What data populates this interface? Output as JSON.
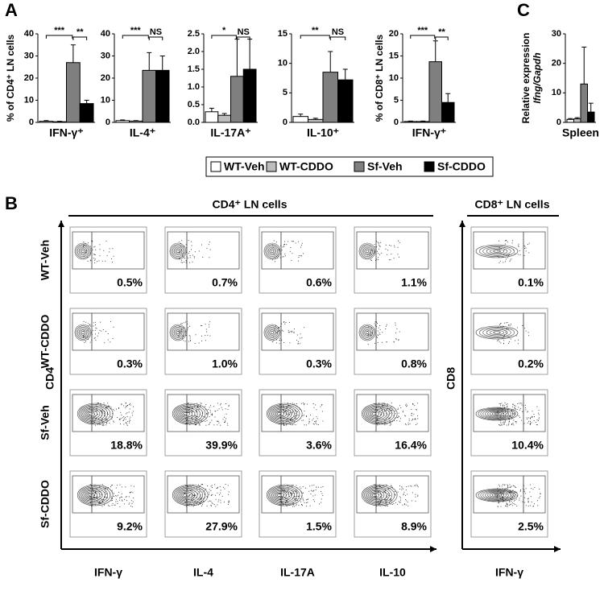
{
  "panel_letters": [
    "A",
    "B",
    "C"
  ],
  "legend": [
    {
      "name": "WT-Veh",
      "color": "#ffffff"
    },
    {
      "name": "WT-CDDO",
      "color": "#bdbdbd"
    },
    {
      "name": "Sf-Veh",
      "color": "#7f7f7f"
    },
    {
      "name": "Sf-CDDO",
      "color": "#000000"
    }
  ],
  "chart_data": [
    {
      "type": "bar",
      "ylabel": "% of CD4⁺ LN cells",
      "category": "IFN-γ⁺",
      "values": [
        0.5,
        0.3,
        27,
        8.5
      ],
      "errors": [
        0.3,
        0.2,
        8,
        1.5
      ],
      "ylim": [
        0,
        40
      ],
      "yticks": [
        0,
        10,
        20,
        30,
        40
      ],
      "annotations": [
        "***",
        "**"
      ]
    },
    {
      "type": "bar",
      "category": "IL-4⁺",
      "values": [
        0.8,
        0.6,
        23.5,
        23.5
      ],
      "errors": [
        0.3,
        0.2,
        8,
        6.5
      ],
      "ylim": [
        0,
        40
      ],
      "yticks": [
        0,
        10,
        20,
        30,
        40
      ],
      "annotations": [
        "***",
        "NS"
      ]
    },
    {
      "type": "bar",
      "category": "IL-17A⁺",
      "values": [
        0.3,
        0.2,
        1.3,
        1.5
      ],
      "errors": [
        0.1,
        0.05,
        1.05,
        0.85
      ],
      "ylim": [
        0,
        2.5
      ],
      "yticks": [
        {
          "value": 0,
          "label": "0.0"
        },
        0.5,
        {
          "value": 1,
          "label": "1.0"
        },
        1.5,
        {
          "value": 2,
          "label": "2.0"
        },
        2.5
      ],
      "annotations": [
        "*",
        "NS"
      ]
    },
    {
      "type": "bar",
      "category": "IL-10⁺",
      "values": [
        1.0,
        0.5,
        8.5,
        7.2
      ],
      "errors": [
        0.4,
        0.2,
        3.5,
        1.8
      ],
      "ylim": [
        0,
        15
      ],
      "yticks": [
        0,
        5,
        10,
        15
      ],
      "annotations": [
        "**",
        "NS"
      ]
    },
    {
      "type": "bar",
      "ylabel": "% of CD8⁺ LN cells",
      "category": "IFN-γ⁺",
      "values": [
        0.2,
        0.2,
        13.7,
        4.5
      ],
      "errors": [
        0.1,
        0.1,
        4.7,
        2
      ],
      "ylim": [
        0,
        20
      ],
      "yticks": [
        0,
        5,
        10,
        15,
        20
      ],
      "annotations": [
        "***",
        "**"
      ]
    },
    {
      "type": "bar",
      "ylabel": "Relative expression",
      "ylabel2": "Ifng/Gapdh",
      "category": "Spleen",
      "values": [
        1,
        1.2,
        13,
        3.5
      ],
      "errors": [
        0.3,
        0.4,
        12.5,
        3
      ],
      "ylim": [
        0,
        30
      ],
      "yticks": [
        0,
        10,
        20,
        30
      ]
    }
  ],
  "flow": {
    "cd4_title": "CD4⁺ LN cells",
    "cd8_title": "CD8⁺ LN cells",
    "cd4_axis": "CD4",
    "cd8_axis": "CD8",
    "rows": [
      "WT-Veh",
      "WT-CDDO",
      "Sf-Veh",
      "Sf-CDDO"
    ],
    "cd4_columns": [
      "IFN-γ",
      "IL-4",
      "IL-17A",
      "IL-10"
    ],
    "cd8_column": "IFN-γ",
    "cd4_percent": [
      [
        "0.5%",
        "0.7%",
        "0.6%",
        "1.1%"
      ],
      [
        "0.3%",
        "1.0%",
        "0.3%",
        "0.8%"
      ],
      [
        "18.8%",
        "39.9%",
        "3.6%",
        "16.4%"
      ],
      [
        "9.2%",
        "27.9%",
        "1.5%",
        "8.9%"
      ]
    ],
    "cd8_percent": [
      "0.1%",
      "0.2%",
      "10.4%",
      "2.5%"
    ]
  }
}
